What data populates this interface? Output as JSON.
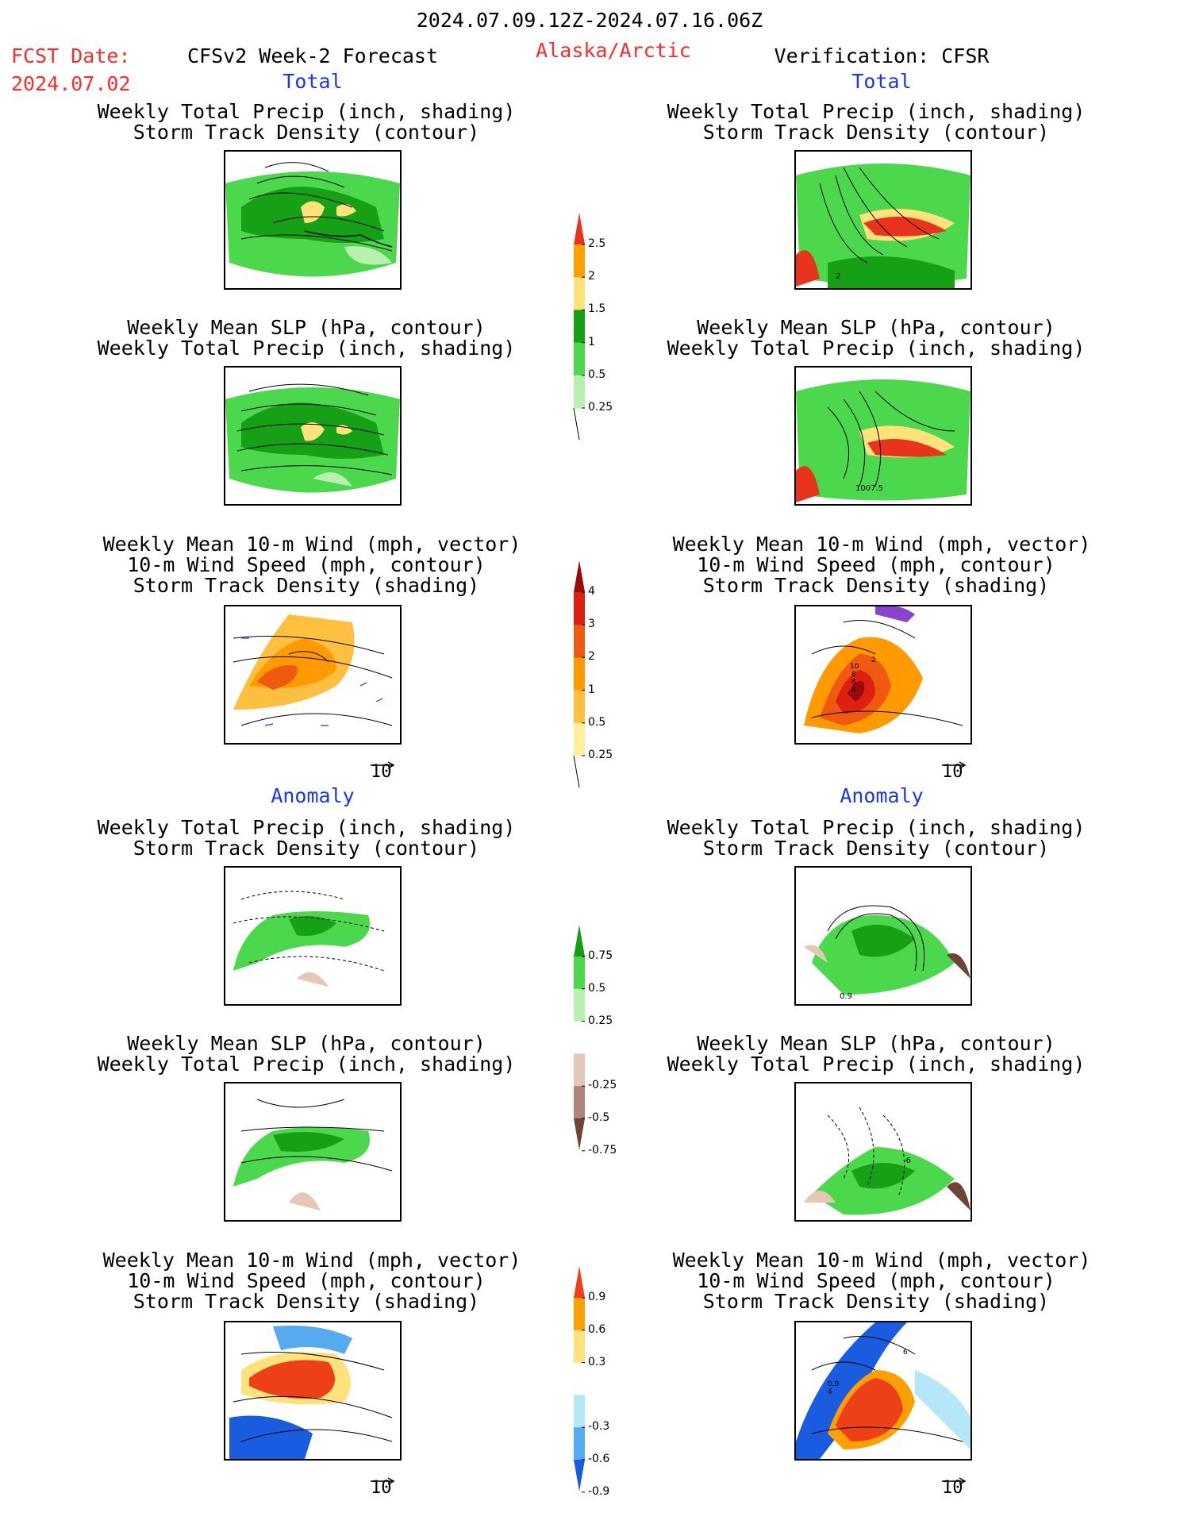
{
  "header": {
    "date_range": "2024.07.09.12Z-2024.07.16.06Z",
    "fcst_label": "FCST Date:",
    "fcst_date": "2024.07.02",
    "model": "CFSv2 Week-2 Forecast",
    "region": "Alaska/Arctic",
    "verification": "Verification: CFSR"
  },
  "sections": {
    "total": "Total",
    "anomaly": "Anomaly"
  },
  "titles": {
    "precip_storm": [
      "Weekly Total Precip (inch, shading)",
      "Storm Track Density (contour)"
    ],
    "slp_precip": [
      "Weekly Mean SLP (hPa, contour)",
      "Weekly Total Precip (inch, shading)"
    ],
    "wind_storm": [
      "Weekly Mean 10-m Wind (mph, vector)",
      "10-m Wind Speed (mph, contour)",
      "Storm Track Density (shading)"
    ]
  },
  "contour_labels": {
    "obs_total_precip": "2",
    "obs_total_slp": "1007.5",
    "obs_total_wind": [
      "10",
      "8",
      "6",
      "4",
      "2"
    ],
    "obs_anom_precip": "0.9",
    "obs_anom_slp": "-6",
    "obs_anom_wind": [
      "0.9",
      "4",
      "6"
    ]
  },
  "vector_ref": "10",
  "colorbars": {
    "total_precip": {
      "labels": [
        "2.5",
        "2",
        "1.5",
        "1",
        "0.5",
        "0.25"
      ],
      "colors": [
        "#e8341c",
        "#ffa000",
        "#ffe27a",
        "#16a016",
        "#4cd84c",
        "#b8f0b0"
      ]
    },
    "total_storm": {
      "labels": [
        "4",
        "3",
        "2",
        "1",
        "0.5",
        "0.25"
      ],
      "colors": [
        "#9a0a0a",
        "#dd2010",
        "#f05a10",
        "#ff9a00",
        "#ffc040",
        "#fff0a0"
      ]
    },
    "anom_precip": {
      "labels": [
        "0.75",
        "0.5",
        "0.25",
        "-0.25",
        "-0.5",
        "-0.75"
      ],
      "colors": [
        "#16a016",
        "#4cd84c",
        "#b8f0b0",
        "#ffffff",
        "#e6c6b6",
        "#b08478",
        "#6e4436"
      ]
    },
    "anom_storm": {
      "labels": [
        "0.9",
        "0.6",
        "0.3",
        "-0.3",
        "-0.6",
        "-0.9"
      ],
      "colors": [
        "#ee4018",
        "#ffa000",
        "#ffe27a",
        "#ffffff",
        "#b4e8f8",
        "#56aaf0",
        "#1a5ce0"
      ]
    }
  }
}
